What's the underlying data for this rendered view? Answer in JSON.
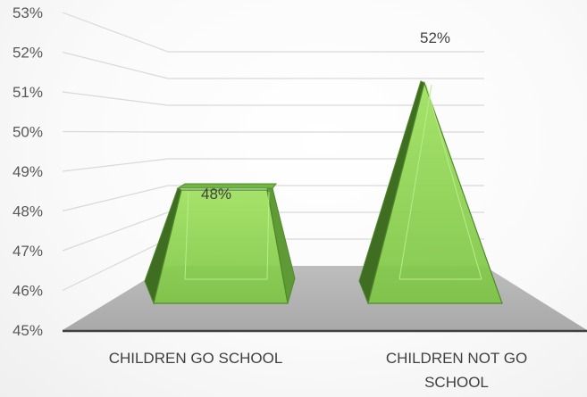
{
  "chart_data": {
    "type": "bar",
    "style": "3d-pyramid",
    "categories": [
      "CHILDREN GO SCHOOL",
      "CHILDREN NOT GO SCHOOL"
    ],
    "category_lines": [
      [
        "CHILDREN GO SCHOOL"
      ],
      [
        "CHILDREN NOT GO",
        "SCHOOL"
      ]
    ],
    "values": [
      48,
      52
    ],
    "data_labels": [
      "48%",
      "52%"
    ],
    "title": "",
    "xlabel": "",
    "ylabel": "",
    "ylim": [
      45,
      53
    ],
    "ytick_labels": [
      "45%",
      "46%",
      "47%",
      "48%",
      "49%",
      "50%",
      "51%",
      "52%",
      "53%"
    ],
    "grid": true,
    "legend": "none",
    "colors": {
      "bar_fill": "#92d050",
      "bar_edge": "#4f8a2a",
      "floor": "#b2b2b2",
      "gridline": "#d9d9d9",
      "axis": "#404040"
    }
  }
}
